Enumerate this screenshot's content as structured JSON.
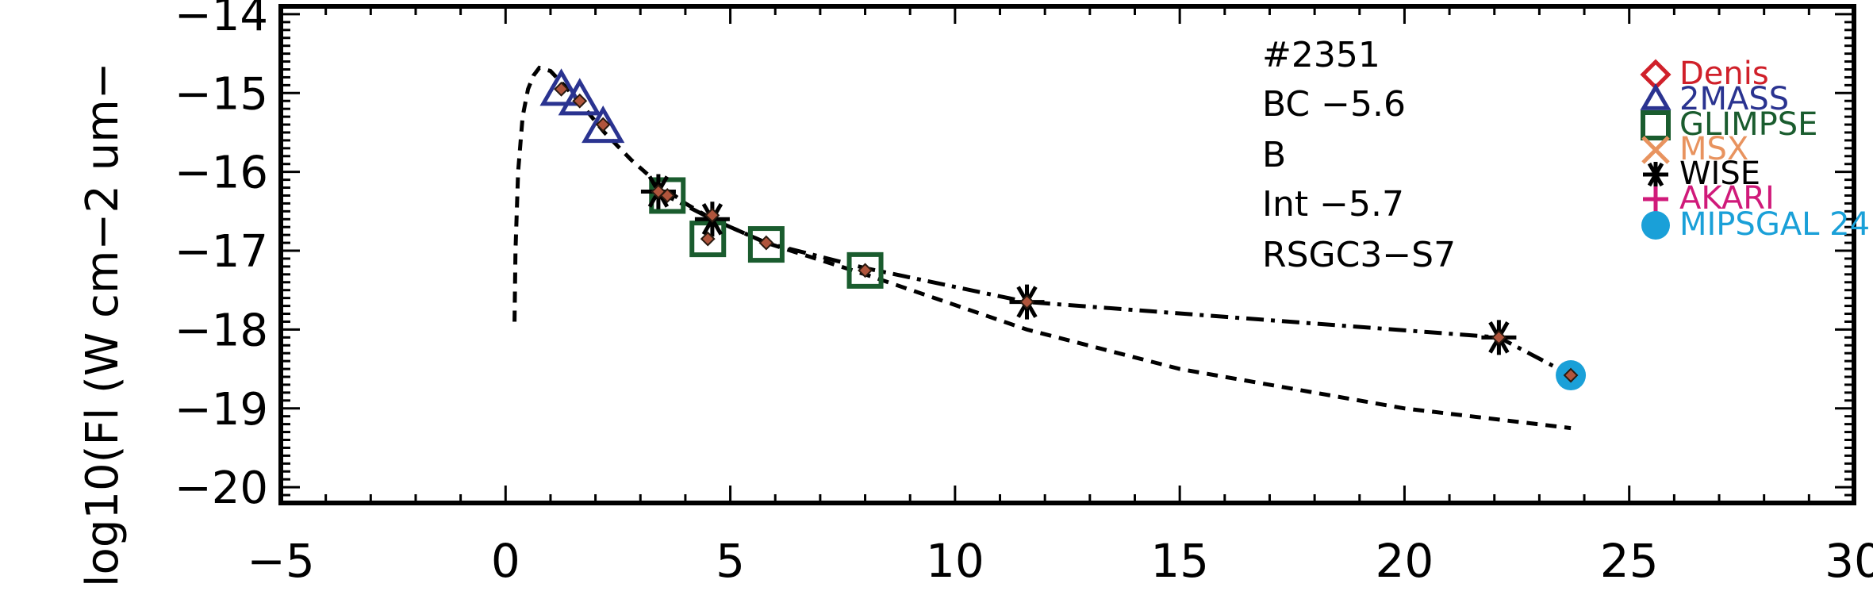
{
  "chart_data": {
    "type": "scatter",
    "title": "",
    "xlabel": "",
    "ylabel": "log10(Fl (W cm−2 um−",
    "xlim": [
      -5,
      30
    ],
    "ylim": [
      -20.2,
      -13.9
    ],
    "x_ticks": [
      -5,
      0,
      5,
      10,
      15,
      20,
      25,
      30
    ],
    "x_tick_labels": [
      "−5",
      "0",
      "5",
      "10",
      "15",
      "20",
      "25",
      "30"
    ],
    "y_ticks": [
      -20,
      -19,
      -18,
      -17,
      -16,
      -15,
      -14
    ],
    "y_tick_labels": [
      "−20",
      "−19",
      "−18",
      "−17",
      "−16",
      "−15",
      "−14"
    ],
    "annotations": [
      "#2351",
      "BC −5.6",
      "B",
      "Int −5.7",
      "RSGC3−S7"
    ],
    "legend": [
      {
        "label": "Denis",
        "marker": "diamond",
        "color": "#d0202a"
      },
      {
        "label": "2MASS",
        "marker": "triangle",
        "color": "#2a3390"
      },
      {
        "label": "GLIMPSE",
        "marker": "square",
        "color": "#1a5c2e"
      },
      {
        "label": "MSX",
        "marker": "x",
        "color": "#e8935f"
      },
      {
        "label": "WISE",
        "marker": "asterisk",
        "color": "#000000"
      },
      {
        "label": "AKARI",
        "marker": "plus",
        "color": "#d01a7a"
      },
      {
        "label": "MIPSGAL 24",
        "marker": "circle",
        "color": "#1aa0d8"
      }
    ],
    "series": [
      {
        "marker": "triangle",
        "color": "#2a3390",
        "x": [
          1.24,
          1.65,
          2.17
        ],
        "y": [
          -14.98,
          -15.1,
          -15.45
        ]
      },
      {
        "marker": "square",
        "color": "#1a5c2e",
        "x": [
          3.6,
          4.5,
          5.8,
          8.0
        ],
        "y": [
          -16.3,
          -16.85,
          -16.92,
          -17.25
        ]
      },
      {
        "marker": "asterisk",
        "color": "#000000",
        "x": [
          3.4,
          4.6,
          11.6,
          22.1
        ],
        "y": [
          -16.25,
          -16.6,
          -17.65,
          -18.1
        ]
      },
      {
        "marker": "circle",
        "color": "#1aa0d8",
        "x": [
          23.7
        ],
        "y": [
          -18.58
        ]
      },
      {
        "marker": "model-point",
        "color": "#b0553c",
        "x": [
          1.24,
          1.65,
          2.17,
          3.4,
          3.6,
          4.5,
          4.6,
          5.8,
          8.0,
          11.6,
          22.1,
          23.7
        ],
        "y": [
          -14.95,
          -15.1,
          -15.4,
          -16.25,
          -16.3,
          -16.85,
          -16.55,
          -16.9,
          -17.25,
          -17.65,
          -18.1,
          -18.58
        ]
      }
    ],
    "lines": [
      {
        "style": "dashed",
        "color": "#000000",
        "x": [
          0.2,
          0.22,
          0.28,
          0.38,
          0.5,
          0.62,
          0.75,
          1.0,
          1.3,
          1.7,
          2.2,
          2.8,
          3.4,
          4.0,
          4.6,
          5.8,
          8.0,
          11.6,
          15.0,
          20.0,
          23.7
        ],
        "y": [
          -17.9,
          -17.0,
          -16.0,
          -15.3,
          -14.95,
          -14.78,
          -14.68,
          -14.72,
          -14.9,
          -15.15,
          -15.5,
          -15.85,
          -16.15,
          -16.4,
          -16.6,
          -16.9,
          -17.3,
          -18.0,
          -18.5,
          -19.0,
          -19.25
        ]
      },
      {
        "style": "dashdot",
        "color": "#000000",
        "x": [
          3.4,
          4.6,
          5.8,
          8.0,
          11.6,
          22.1,
          23.7
        ],
        "y": [
          -16.25,
          -16.6,
          -16.9,
          -17.22,
          -17.65,
          -18.1,
          -18.58
        ]
      }
    ]
  }
}
